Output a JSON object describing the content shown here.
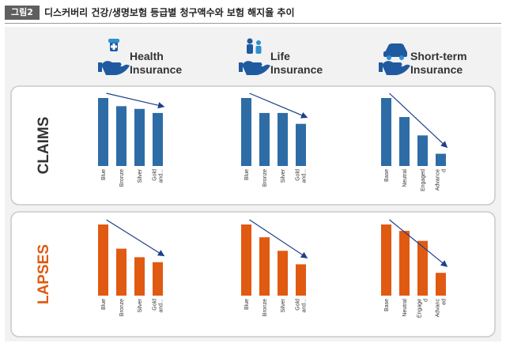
{
  "figure": {
    "label": "그림2",
    "title": "디스커버리 건강/생명보험 등급별 청구액수와 보험 해지율 추이"
  },
  "columns": [
    {
      "line1": "Health",
      "line2": "Insurance",
      "icon": "health-insurance-icon"
    },
    {
      "line1": "Life",
      "line2": "Insurance",
      "icon": "life-insurance-icon"
    },
    {
      "line1": "Short-term",
      "line2": "Insurance",
      "icon": "car-insurance-icon"
    }
  ],
  "rows": [
    {
      "label": "CLAIMS",
      "color": "#2e6ca6",
      "label_color": "#333333"
    },
    {
      "label": "LAPSES",
      "color": "#e05a12",
      "label_color": "#e05a12"
    }
  ],
  "colors": {
    "arrow": "#1f3f8a",
    "panel_border": "#c9c9c9",
    "panel_bg": "#ffffff"
  },
  "chart_data": [
    {
      "type": "bar",
      "row": "CLAIMS",
      "panel": "Health Insurance",
      "categories": [
        "Blue",
        "Bronze",
        "Silver",
        "Gold and..."
      ],
      "values": [
        100,
        88,
        84,
        78
      ],
      "trend": "decreasing"
    },
    {
      "type": "bar",
      "row": "CLAIMS",
      "panel": "Life Insurance",
      "categories": [
        "Blue",
        "Bronze",
        "Silver",
        "Gold and..."
      ],
      "values": [
        100,
        78,
        78,
        62
      ],
      "trend": "decreasing"
    },
    {
      "type": "bar",
      "row": "CLAIMS",
      "panel": "Short-term Insurance",
      "categories": [
        "Base",
        "Neutral",
        "Engaged",
        "Advance d"
      ],
      "values": [
        100,
        72,
        45,
        18
      ],
      "trend": "decreasing"
    },
    {
      "type": "bar",
      "row": "LAPSES",
      "panel": "Health Insurance",
      "categories": [
        "Blue",
        "Bronze",
        "Silver",
        "Gold and..."
      ],
      "values": [
        100,
        66,
        54,
        47
      ],
      "trend": "decreasing"
    },
    {
      "type": "bar",
      "row": "LAPSES",
      "panel": "Life Insurance",
      "categories": [
        "Blue",
        "Bronze",
        "Silver",
        "Gold and..."
      ],
      "values": [
        100,
        82,
        63,
        44
      ],
      "trend": "decreasing"
    },
    {
      "type": "bar",
      "row": "LAPSES",
      "panel": "Short-term Insurance",
      "categories": [
        "Base",
        "Neutral",
        "Engage d",
        "Advanc ed"
      ],
      "values": [
        100,
        91,
        77,
        32
      ],
      "trend": "decreasing"
    }
  ]
}
